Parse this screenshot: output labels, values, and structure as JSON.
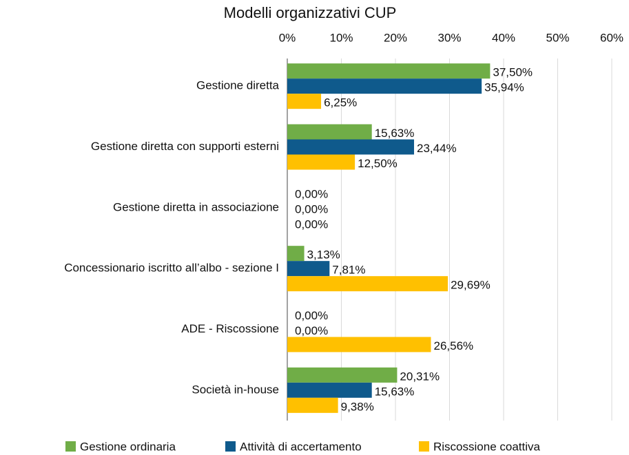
{
  "chart_data": {
    "type": "barh",
    "title": "Modelli organizzativi CUP",
    "categories": [
      "Gestione diretta",
      "Gestione diretta con supporti esterni",
      "Gestione diretta in associazione",
      "Concessionario iscritto all’albo - sezione I",
      "ADE - Riscossione",
      "Società in-house"
    ],
    "series": [
      {
        "name": "Gestione ordinaria",
        "color": "#70ad47",
        "values": [
          37.5,
          15.63,
          0,
          3.13,
          0,
          20.31
        ],
        "value_labels": [
          "37,50%",
          "15,63%",
          "0,00%",
          "3,13%",
          "0,00%",
          "20,31%"
        ]
      },
      {
        "name": "Attività di accertamento",
        "color": "#0f5a8c",
        "values": [
          35.94,
          23.44,
          0,
          7.81,
          0,
          15.63
        ],
        "value_labels": [
          "35,94%",
          "23,44%",
          "0,00%",
          "7,81%",
          "0,00%",
          "15,63%"
        ]
      },
      {
        "name": "Riscossione coattiva",
        "color": "#ffc000",
        "values": [
          6.25,
          12.5,
          0,
          29.69,
          26.56,
          9.38
        ],
        "value_labels": [
          "6,25%",
          "12,50%",
          "0,00%",
          "29,69%",
          "26,56%",
          "9,38%"
        ]
      }
    ],
    "xlim": [
      0,
      60
    ],
    "xticks": [
      {
        "value": 0,
        "label": "0%"
      },
      {
        "value": 10,
        "label": "10%"
      },
      {
        "value": 20,
        "label": "20%"
      },
      {
        "value": 30,
        "label": "30%"
      },
      {
        "value": 40,
        "label": "40%"
      },
      {
        "value": 50,
        "label": "50%"
      },
      {
        "value": 60,
        "label": "60%"
      }
    ],
    "grid": true,
    "legend": "bottom"
  }
}
